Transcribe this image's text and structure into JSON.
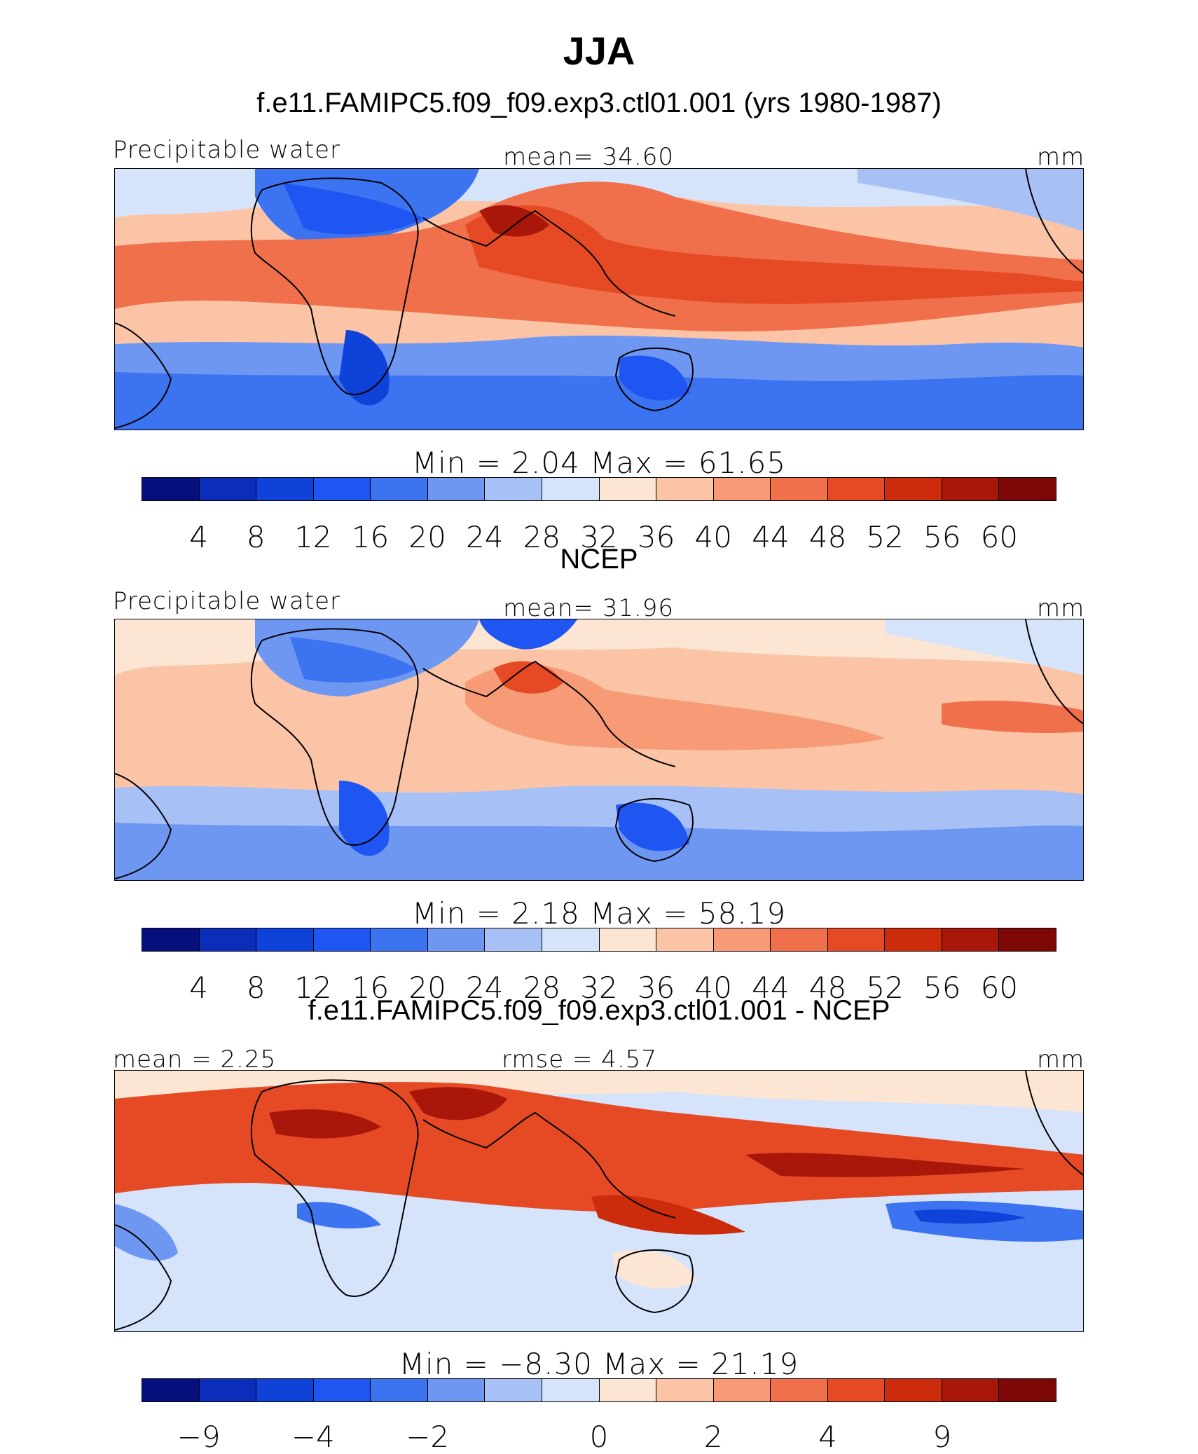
{
  "title": "JJA",
  "panels": [
    {
      "title": "f.e11.FAMIPC5.f09_f09.exp3.ctl01.001 (yrs 1980-1987)",
      "left_label": "Precipitable water",
      "center_label": "mean=  34.60",
      "unit": "mm",
      "minmax": "Min =    2.04  Max =   61.65",
      "ticks": [
        "4",
        "8",
        "12",
        "16",
        "20",
        "24",
        "28",
        "32",
        "36",
        "40",
        "44",
        "48",
        "52",
        "56",
        "60"
      ]
    },
    {
      "title": "NCEP",
      "left_label": "Precipitable water",
      "center_label": "mean=  31.96",
      "unit": "mm",
      "minmax": "Min =    2.18  Max =   58.19",
      "ticks": [
        "4",
        "8",
        "12",
        "16",
        "20",
        "24",
        "28",
        "32",
        "36",
        "40",
        "44",
        "48",
        "52",
        "56",
        "60"
      ]
    },
    {
      "title": "f.e11.FAMIPC5.f09_f09.exp3.ctl01.001 - NCEP",
      "left_label": "mean =   2.25",
      "center_label": "rmse =   4.57",
      "unit": "mm",
      "minmax": "Min =   −8.30  Max =   21.19",
      "ticks": [
        "−9",
        "−4",
        "−2",
        "0",
        "2",
        "4",
        "9"
      ]
    }
  ],
  "chart_data": [
    {
      "type": "heatmap",
      "title": "f.e11.FAMIPC5.f09_f09.exp3.ctl01.001 (yrs 1980-1987)",
      "variable": "Precipitable water",
      "units": "mm",
      "mean": 34.6,
      "min": 2.04,
      "max": 61.65,
      "contour_levels": [
        4,
        8,
        12,
        16,
        20,
        24,
        28,
        32,
        36,
        40,
        44,
        48,
        52,
        56,
        60
      ]
    },
    {
      "type": "heatmap",
      "title": "NCEP",
      "variable": "Precipitable water",
      "units": "mm",
      "mean": 31.96,
      "min": 2.18,
      "max": 58.19,
      "contour_levels": [
        4,
        8,
        12,
        16,
        20,
        24,
        28,
        32,
        36,
        40,
        44,
        48,
        52,
        56,
        60
      ]
    },
    {
      "type": "heatmap",
      "title": "f.e11.FAMIPC5.f09_f09.exp3.ctl01.001 - NCEP",
      "units": "mm",
      "mean": 2.25,
      "rmse": 4.57,
      "min": -8.3,
      "max": 21.19,
      "contour_levels": [
        -9,
        -4,
        -2,
        0,
        2,
        4,
        9
      ]
    }
  ],
  "colors": [
    "#06107d",
    "#0a2dba",
    "#0f42d9",
    "#1f55f0",
    "#3c73f0",
    "#6e97f2",
    "#a7c1f7",
    "#d5e4fb",
    "#fde5d3",
    "#fbc4a6",
    "#f79b77",
    "#f0704b",
    "#e54a25",
    "#cc2b0c",
    "#a8170a",
    "#7d0805"
  ]
}
